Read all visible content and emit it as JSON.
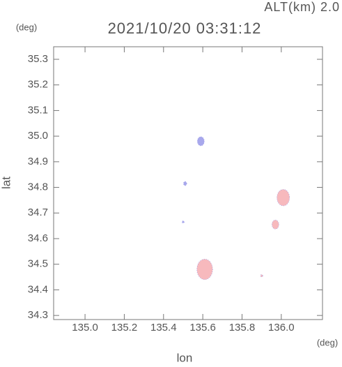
{
  "chart_data": {
    "type": "scatter",
    "title": "2021/10/20 03:31:12",
    "subtitle": "ALT(km)  2.0",
    "x_label": "lon",
    "y_label": "lat",
    "x_unit": "(deg)",
    "y_unit": "(deg)",
    "xlim": [
      134.84,
      136.21
    ],
    "ylim": [
      34.284,
      35.349
    ],
    "xticks": [
      {
        "value": 135.0,
        "label": "135.0"
      },
      135.2,
      135.4,
      135.6,
      135.8,
      {
        "value": 136.0,
        "label": "136.0"
      }
    ],
    "yticks": [
      34.3,
      34.4,
      34.5,
      34.6,
      34.7,
      34.8,
      34.9,
      {
        "value": 35.0,
        "label": "35.0"
      },
      35.1,
      35.2,
      35.3
    ],
    "series": [
      {
        "color": "#f7b9bd",
        "x": [
          136.01,
          135.97,
          135.61,
          135.9
        ],
        "values": [
          34.76,
          34.655,
          34.48,
          34.455
        ],
        "sizes": [
          0.04,
          0.022,
          0.05,
          0.006
        ]
      },
      {
        "color": "#a8a8ec",
        "x": [
          135.59,
          135.51,
          135.5
        ],
        "values": [
          34.98,
          34.815,
          34.665
        ],
        "sizes": [
          0.022,
          0.01,
          0.004
        ]
      }
    ]
  }
}
